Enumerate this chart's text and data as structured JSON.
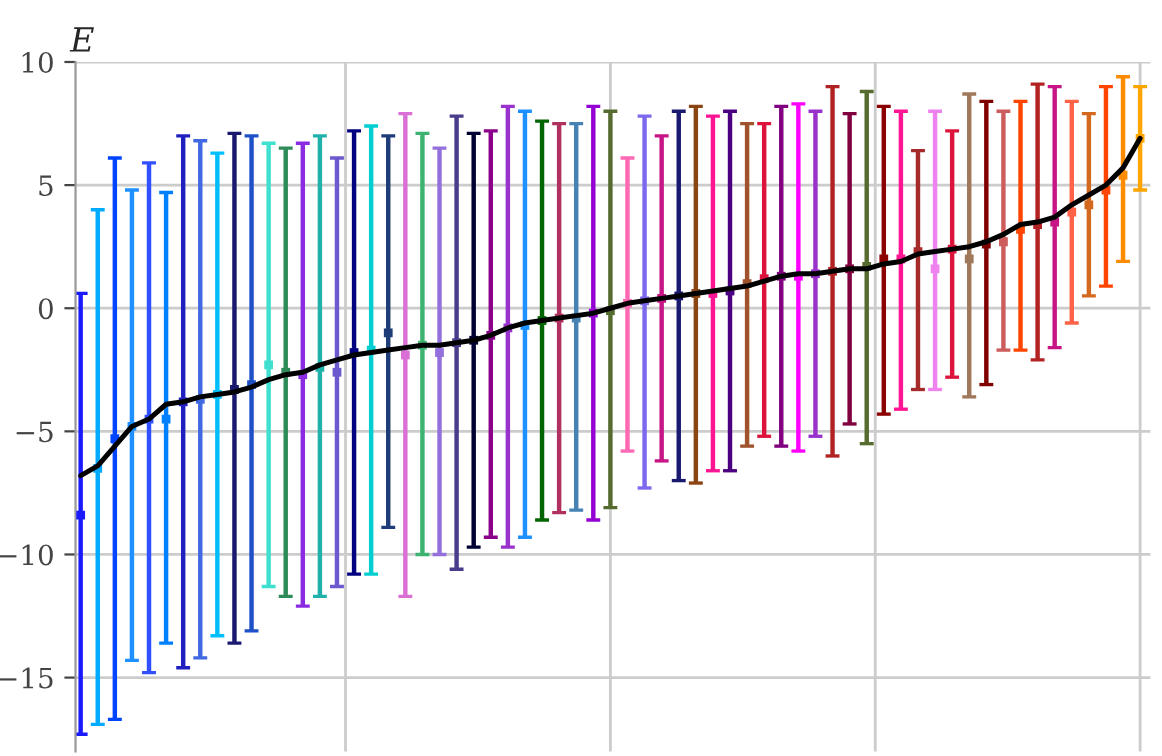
{
  "chart_data": {
    "type": "scatter",
    "ylabel": "E",
    "categories": [
      null,
      null,
      null,
      null,
      null,
      null,
      null,
      null,
      null,
      null,
      null,
      null,
      null,
      null,
      null,
      null,
      null,
      null,
      null,
      null,
      null,
      null,
      null,
      null,
      null,
      null,
      null,
      null,
      null,
      null,
      null,
      null,
      null,
      null,
      null,
      null,
      null,
      null,
      null,
      null,
      null,
      null,
      null,
      null,
      null,
      null,
      null,
      null,
      null,
      null,
      null,
      null,
      null,
      null,
      null,
      null,
      null,
      null,
      null,
      null,
      null,
      null,
      null
    ],
    "ylim": [
      -18,
      10
    ],
    "yticks": [
      {
        "value": -15,
        "label": "−15"
      },
      {
        "value": -10,
        "label": "−10"
      },
      {
        "value": -5,
        "label": "−5"
      },
      0,
      5,
      10
    ],
    "grid": true,
    "series": [
      {
        "marker": "square",
        "values": [
          -8.4,
          -6.5,
          -5.3,
          -4.8,
          -4.5,
          -4.5,
          -3.8,
          -3.7,
          -3.5,
          -3.3,
          -3.1,
          -2.3,
          -2.6,
          -2.7,
          -2.4,
          -2.6,
          -1.8,
          -1.7,
          -1.0,
          -1.9,
          -1.5,
          -1.8,
          -1.4,
          -1.3,
          -1.1,
          -0.8,
          -0.7,
          -0.5,
          -0.4,
          -0.4,
          -0.2,
          -0.1,
          0.2,
          0.3,
          0.4,
          0.5,
          0.6,
          0.6,
          0.7,
          1.0,
          1.2,
          1.3,
          1.3,
          1.4,
          1.5,
          1.6,
          1.7,
          2.0,
          2.0,
          2.3,
          1.6,
          2.4,
          2.0,
          2.6,
          2.7,
          3.2,
          3.4,
          3.5,
          3.9,
          4.2,
          4.8,
          5.4,
          6.9
        ],
        "errors": [
          [
            -17.3,
            0.6
          ],
          [
            -16.9,
            4.0
          ],
          [
            -16.7,
            6.1
          ],
          [
            -14.3,
            4.8
          ],
          [
            -14.8,
            5.9
          ],
          [
            -13.6,
            4.7
          ],
          [
            -14.6,
            7.0
          ],
          [
            -14.2,
            6.8
          ],
          [
            -13.3,
            6.3
          ],
          [
            -13.6,
            7.1
          ],
          [
            -13.1,
            7.0
          ],
          [
            -11.3,
            6.7
          ],
          [
            -11.7,
            6.5
          ],
          [
            -12.1,
            6.7
          ],
          [
            -11.7,
            7.0
          ],
          [
            -11.3,
            6.1
          ],
          [
            -10.8,
            7.2
          ],
          [
            -10.8,
            7.4
          ],
          [
            -8.9,
            7.0
          ],
          [
            -11.7,
            7.9
          ],
          [
            -10.0,
            7.1
          ],
          [
            -10.0,
            6.5
          ],
          [
            -10.6,
            7.8
          ],
          [
            -9.7,
            7.1
          ],
          [
            -9.3,
            7.2
          ],
          [
            -9.7,
            8.2
          ],
          [
            -9.3,
            8.0
          ],
          [
            -8.6,
            7.6
          ],
          [
            -8.3,
            7.5
          ],
          [
            -8.2,
            7.5
          ],
          [
            -8.6,
            8.2
          ],
          [
            -8.1,
            8.0
          ],
          [
            -5.8,
            6.1
          ],
          [
            -7.3,
            7.8
          ],
          [
            -6.2,
            7.0
          ],
          [
            -7.0,
            8.0
          ],
          [
            -7.1,
            8.2
          ],
          [
            -6.6,
            7.8
          ],
          [
            -6.6,
            8.0
          ],
          [
            -5.6,
            7.5
          ],
          [
            -5.2,
            7.5
          ],
          [
            -5.6,
            8.2
          ],
          [
            -5.8,
            8.3
          ],
          [
            -5.2,
            8.0
          ],
          [
            -6.0,
            9.0
          ],
          [
            -4.7,
            7.9
          ],
          [
            -5.5,
            8.8
          ],
          [
            -4.3,
            8.2
          ],
          [
            -4.1,
            8.0
          ],
          [
            -3.3,
            6.4
          ],
          [
            -3.3,
            8.0
          ],
          [
            -2.8,
            7.2
          ],
          [
            -3.6,
            8.7
          ],
          [
            -3.1,
            8.4
          ],
          [
            -1.7,
            8.0
          ],
          [
            -1.7,
            8.4
          ],
          [
            -2.1,
            9.1
          ],
          [
            -1.6,
            9.0
          ],
          [
            -0.6,
            8.4
          ],
          [
            0.5,
            7.9
          ],
          [
            0.9,
            9.0
          ],
          [
            1.9,
            9.4
          ],
          [
            4.8,
            9.0
          ]
        ],
        "colors": [
          "#1a1aff",
          "#00aaff",
          "#0044ff",
          "#1e90ff",
          "#3050ff",
          "#0080ff",
          "#2020c0",
          "#4169e1",
          "#00bfff",
          "#191970",
          "#1e50c8",
          "#40e0d0",
          "#2e8b57",
          "#8a2be2",
          "#20b2aa",
          "#6a5acd",
          "#000080",
          "#00ced1",
          "#1e3c78",
          "#da70d6",
          "#3cb371",
          "#9370db",
          "#483d8b",
          "#000033",
          "#8b008b",
          "#9932cc",
          "#1e90ff",
          "#006400",
          "#b03060",
          "#4682b4",
          "#9400d3",
          "#556b2f",
          "#ff69b4",
          "#7b68ee",
          "#c71585",
          "#191970",
          "#8b4513",
          "#ff1493",
          "#4b0082",
          "#a0522d",
          "#dc143c",
          "#800080",
          "#ff00ff",
          "#9932cc",
          "#b22222",
          "#800040",
          "#556b2f",
          "#8b0000",
          "#ff1493",
          "#a52a2a",
          "#ee82ee",
          "#dc143c",
          "#a0785a",
          "#800000",
          "#cd5c5c",
          "#ff4500",
          "#b22222",
          "#c71585",
          "#ff6347",
          "#d2691e",
          "#ff4500",
          "#ff8c00",
          "#ffa500"
        ]
      },
      {
        "type": "line",
        "color": "#000000",
        "values": [
          -6.8,
          -6.4,
          -5.6,
          -4.8,
          -4.5,
          -3.9,
          -3.8,
          -3.6,
          -3.5,
          -3.4,
          -3.2,
          -2.9,
          -2.7,
          -2.6,
          -2.3,
          -2.1,
          -1.9,
          -1.8,
          -1.7,
          -1.6,
          -1.5,
          -1.5,
          -1.4,
          -1.3,
          -1.1,
          -0.8,
          -0.6,
          -0.5,
          -0.4,
          -0.3,
          -0.2,
          0.0,
          0.2,
          0.3,
          0.4,
          0.5,
          0.6,
          0.7,
          0.8,
          0.9,
          1.1,
          1.3,
          1.4,
          1.4,
          1.5,
          1.6,
          1.6,
          1.8,
          1.9,
          2.2,
          2.3,
          2.4,
          2.5,
          2.7,
          3.0,
          3.4,
          3.5,
          3.7,
          4.2,
          4.6,
          5.0,
          5.7,
          6.9
        ]
      }
    ]
  }
}
